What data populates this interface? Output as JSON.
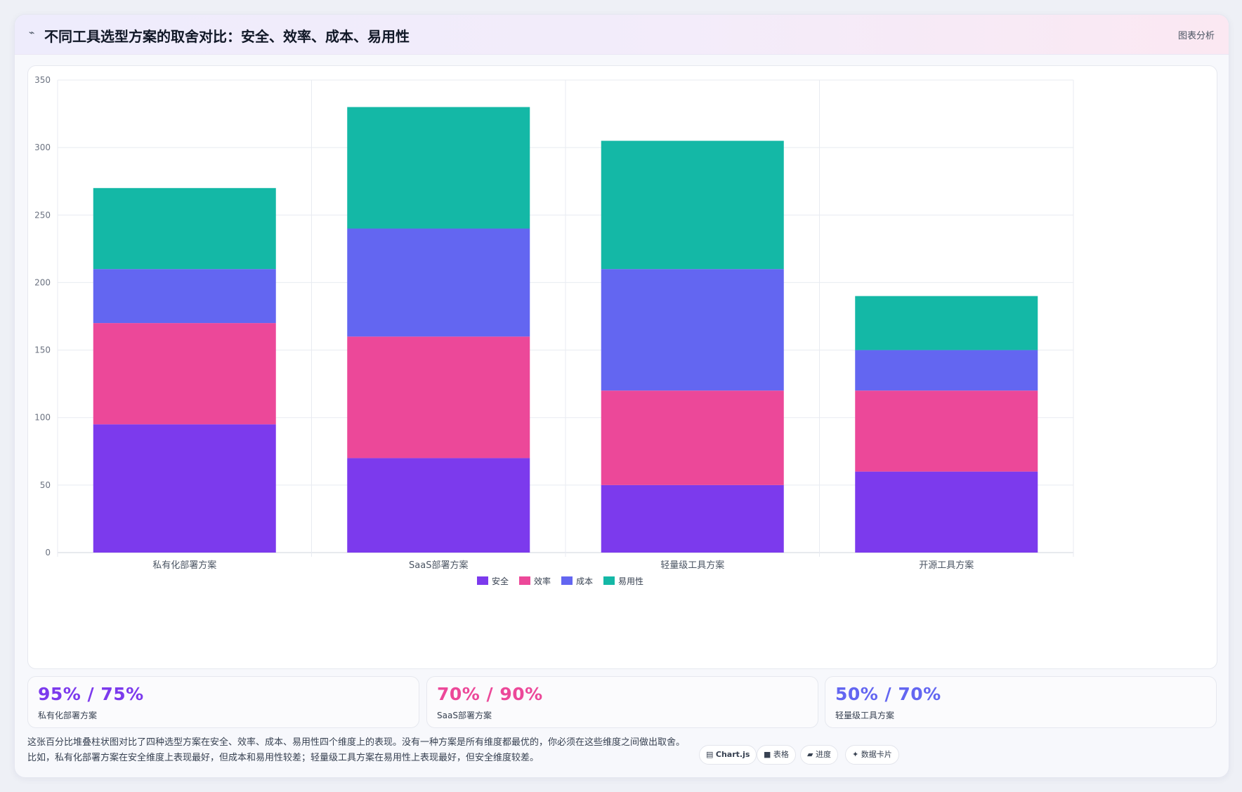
{
  "header": {
    "icon": "chart-line-icon",
    "title": "不同工具选型方案的取舍对比：安全、效率、成本、易用性",
    "tag": "图表分析"
  },
  "chart_data": {
    "type": "bar",
    "stacked": true,
    "categories": [
      "私有化部署方案",
      "SaaS部署方案",
      "轻量级工具方案",
      "开源工具方案"
    ],
    "series": [
      {
        "name": "安全",
        "color": "#7c3aed",
        "values": [
          95,
          70,
          50,
          60
        ]
      },
      {
        "name": "效率",
        "color": "#ec4899",
        "values": [
          75,
          90,
          70,
          60
        ]
      },
      {
        "name": "成本",
        "color": "#6366f1",
        "values": [
          40,
          80,
          90,
          30
        ]
      },
      {
        "name": "易用性",
        "color": "#14b8a6",
        "values": [
          60,
          90,
          95,
          40
        ]
      }
    ],
    "ylim": [
      0,
      350
    ],
    "yticks": [
      0,
      50,
      100,
      150,
      200,
      250,
      300,
      350
    ],
    "grid": true,
    "legend": "bottom-center"
  },
  "stats": [
    {
      "value": "95% / 75%",
      "label": "私有化部署方案",
      "color": "#7c3aed"
    },
    {
      "value": "70% / 90%",
      "label": "SaaS部署方案",
      "color": "#ec4899"
    },
    {
      "value": "50% / 70%",
      "label": "轻量级工具方案",
      "color": "#6366f1"
    }
  ],
  "description": "这张百分比堆叠柱状图对比了四种选型方案在安全、效率、成本、易用性四个维度上的表现。没有一种方案是所有维度都最优的，你必须在这些维度之间做出取舍。比如，私有化部署方案在安全维度上表现最好，但成本和易用性较差；轻量级工具方案在易用性上表现最好，但安全维度较差。",
  "chips": [
    {
      "icon": "▤",
      "label": "Chart.js"
    },
    {
      "icon": "■",
      "label": "表格"
    },
    {
      "icon": "▰",
      "label": "进度"
    },
    {
      "icon": "✦",
      "label": "数据卡片"
    }
  ]
}
